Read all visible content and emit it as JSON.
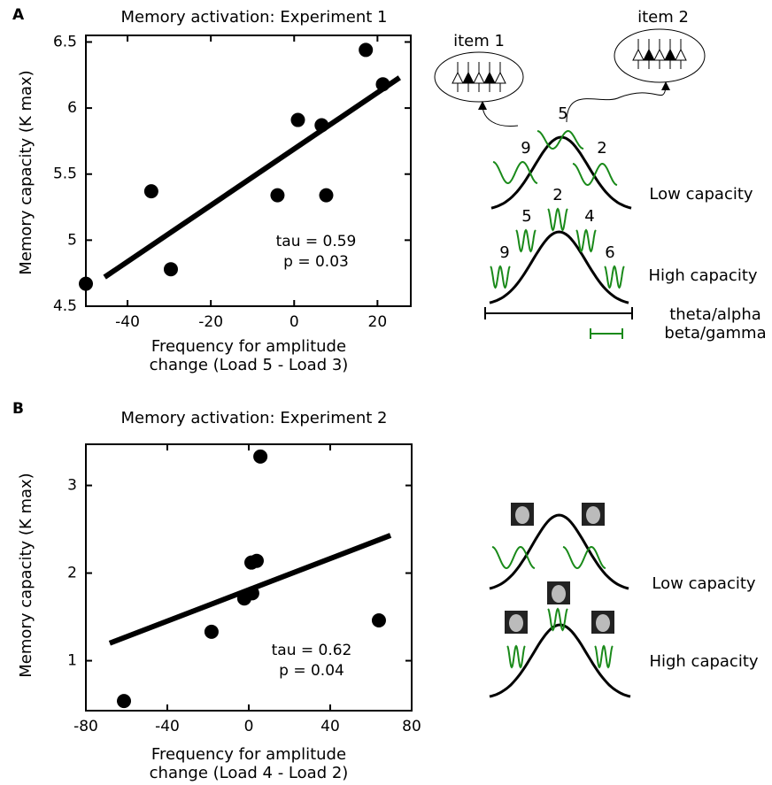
{
  "panel_labels": [
    "A",
    "B"
  ],
  "chart_data": [
    {
      "type": "scatter",
      "title": "Memory activation: Experiment 1",
      "xlabel": [
        "Frequency for amplitude",
        "change (Load 5 - Load 3)"
      ],
      "ylabel": "Memory capacity (K max)",
      "x": [
        -50,
        -34.3,
        -29.6,
        -4.0,
        0.9,
        6.6,
        7.7,
        17.2,
        21.3
      ],
      "values": [
        4.67,
        5.37,
        4.78,
        5.34,
        5.91,
        5.87,
        5.34,
        6.44,
        6.18
      ],
      "color": "#000000",
      "fit": {
        "x": [
          -45.5,
          25.3
        ],
        "y": [
          4.72,
          6.23
        ]
      },
      "annotations": [
        "tau = 0.59",
        "p = 0.03"
      ],
      "xlim": [
        -50,
        28
      ],
      "ylim": [
        4.5,
        6.55
      ],
      "xticks": [
        -40,
        -20,
        0,
        20
      ],
      "yticks": [
        4.5,
        5.0,
        5.5,
        6.0,
        6.5
      ]
    },
    {
      "type": "scatter",
      "title": "Memory activation: Experiment 2",
      "xlabel": [
        "Frequency for amplitude",
        "change (Load 4 - Load 2)"
      ],
      "ylabel": "Memory capacity (K max)",
      "x": [
        -61.3,
        -18.3,
        5.7,
        3.9,
        1.3,
        -2.2,
        1.7,
        63.9
      ],
      "values": [
        0.54,
        1.33,
        3.33,
        2.14,
        2.12,
        1.71,
        1.77,
        1.46
      ],
      "color": "#000000",
      "fit": {
        "x": [
          -68.3,
          69.6
        ],
        "y": [
          1.2,
          2.43
        ]
      },
      "annotations": [
        "tau = 0.62",
        "p = 0.04"
      ],
      "xlim": [
        -80,
        80
      ],
      "ylim": [
        0.43,
        3.47
      ],
      "xticks": [
        -80,
        -40,
        0,
        40,
        80
      ],
      "yticks": [
        1,
        2,
        3
      ]
    }
  ],
  "diagram_a": {
    "items": [
      "item 1",
      "item 2"
    ],
    "low_numbers": [
      "5",
      "9",
      "2"
    ],
    "low_label": "Low capacity",
    "high_numbers": [
      "2",
      "5",
      "4",
      "9",
      "6"
    ],
    "high_label": "High capacity",
    "scale_labels": [
      "theta/alpha",
      "beta/gamma"
    ]
  },
  "diagram_b": {
    "low_label": "Low capacity",
    "high_label": "High capacity"
  }
}
